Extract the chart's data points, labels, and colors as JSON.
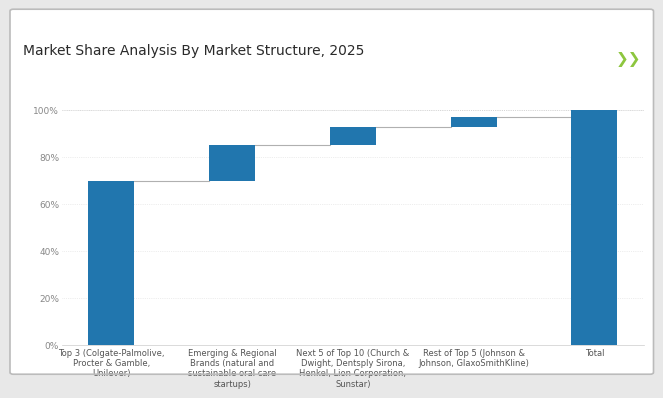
{
  "title": "Market Share Analysis By Market Structure, 2025",
  "categories": [
    "Top 3 (Colgate-Palmolive,\nProcter & Gamble,\nUnilever)",
    "Emerging & Regional\nBrands (natural and\nsustainable oral care\nstartups)",
    "Next 5 of Top 10 (Church &\nDwight, Dentsply Sirona,\nHenkel, Lion Corporation,\nSunstar)",
    "Rest of Top 5 (Johnson &\nJohnson, GlaxoSmithKline)",
    "Total"
  ],
  "tops": [
    70,
    85,
    93,
    97,
    100
  ],
  "bottoms": [
    0,
    70,
    85,
    93,
    0
  ],
  "bar_color": "#2176ae",
  "background_color": "#ffffff",
  "outer_bg": "#e8e8e8",
  "title_fontsize": 10,
  "tick_fontsize": 6.5,
  "xlabel_fontsize": 6,
  "ylim": [
    0,
    108
  ],
  "yticks": [
    0,
    20,
    40,
    60,
    80,
    100
  ],
  "accent_color_green": "#8dc63f",
  "header_line_color": "#b5c900",
  "connector_color": "#b0b0b0",
  "bar_width": 0.38
}
